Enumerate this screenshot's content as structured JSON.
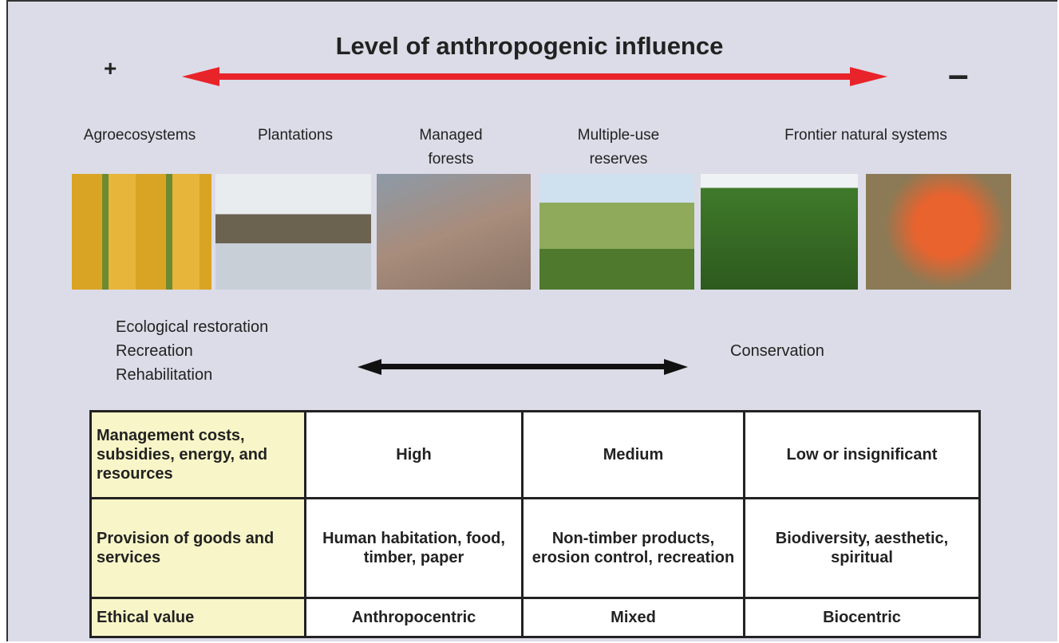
{
  "header": {
    "title": "Level of anthropogenic influence",
    "plus": "+",
    "minus": "–"
  },
  "systems": [
    "Agroecosystems",
    "Plantations",
    "Managed forests",
    "Multiple-use reserves",
    "Frontier natural systems"
  ],
  "approaches": {
    "left": [
      "Ecological restoration",
      "Recreation",
      "Rehabilitation"
    ],
    "right": "Conservation"
  },
  "table": {
    "rows": [
      [
        "Management costs, subsidies, energy, and resources",
        "High",
        "Medium",
        "Low or insignificant"
      ],
      [
        "Provision of goods and services",
        "Human habitation, food, timber, paper",
        "Non-timber products, erosion control, recreation",
        "Biodiversity, aesthetic, spiritual"
      ],
      [
        "Ethical value",
        "Anthropocentric",
        "Mixed",
        "Biocentric"
      ]
    ]
  }
}
